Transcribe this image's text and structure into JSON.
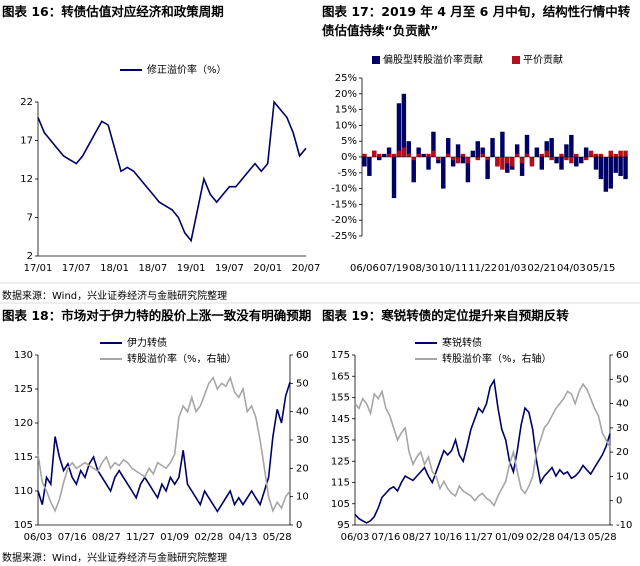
{
  "chart_data": [
    {
      "type": "line",
      "title": "图表 16：转债估值对应经济和政策周期",
      "categories": [
        "17/01",
        null,
        null,
        null,
        null,
        null,
        "17/07",
        null,
        null,
        null,
        null,
        null,
        "18/01",
        null,
        null,
        null,
        null,
        null,
        "18/07",
        null,
        null,
        null,
        null,
        null,
        "19/01",
        null,
        null,
        null,
        null,
        null,
        "19/07",
        null,
        null,
        null,
        null,
        null,
        "20/01",
        null,
        null,
        null,
        null,
        null,
        "20/07"
      ],
      "series": [
        {
          "name": "修正溢价率（%）",
          "color": "#000066",
          "values": [
            20,
            18,
            17,
            16,
            15,
            14.5,
            14,
            15,
            16.5,
            18,
            19.5,
            19,
            16,
            13,
            13.5,
            13,
            12,
            11,
            10,
            9,
            8.5,
            8,
            7,
            5,
            4,
            8,
            12,
            10,
            9,
            10,
            11,
            11,
            12,
            13,
            14,
            13,
            14,
            22,
            21,
            20,
            18,
            15,
            16
          ]
        }
      ],
      "ylim": [
        2,
        22
      ],
      "yticks": [
        2,
        7,
        12,
        17,
        22
      ]
    },
    {
      "type": "bar",
      "title": "图表 17：2019 年 4 月至 6 月中旬，结构性行情中转债估值持续“负贡献”",
      "categories": [
        "06/06",
        null,
        null,
        null,
        null,
        null,
        "07/19",
        null,
        null,
        null,
        null,
        null,
        "08/30",
        null,
        null,
        null,
        null,
        null,
        "10/11",
        null,
        null,
        null,
        null,
        null,
        "11/22",
        null,
        null,
        null,
        null,
        null,
        "01/03",
        null,
        null,
        null,
        null,
        null,
        "02/21",
        null,
        null,
        null,
        null,
        null,
        "04/03",
        null,
        null,
        null,
        null,
        null,
        "05/15",
        null,
        null,
        null,
        null,
        null
      ],
      "series": [
        {
          "name": "偏股型转股溢价率贡献",
          "color": "#000066",
          "values": [
            -3,
            -6,
            2,
            -1,
            1,
            3,
            -13,
            17,
            20,
            5,
            -8,
            3,
            1,
            -4,
            8,
            -2,
            -10,
            6,
            -3,
            4,
            -2,
            -8,
            2,
            5,
            3,
            -7,
            6,
            -3,
            8,
            -5,
            -4,
            4,
            -6,
            7,
            -2,
            3,
            -4,
            5,
            6,
            -2,
            -4,
            4,
            7,
            -3,
            -2,
            3,
            1,
            -4,
            -7,
            -11,
            -10,
            -5,
            -6,
            -7
          ]
        },
        {
          "name": "平价贡献",
          "color": "#b0101e",
          "values": [
            1,
            0,
            2,
            1,
            0,
            1,
            1,
            2,
            3,
            1,
            -1,
            1,
            0,
            1,
            2,
            -1,
            0,
            1,
            -1,
            -2,
            1,
            -2,
            0,
            -1,
            1,
            -1,
            0,
            -3,
            -4,
            -2,
            -3,
            1,
            -2,
            1,
            -3,
            0,
            1,
            2,
            -1,
            0,
            1,
            -1,
            -2,
            1,
            0,
            -1,
            2,
            1,
            1,
            0,
            2,
            1,
            2,
            2
          ]
        }
      ],
      "ylim": [
        -25,
        25
      ],
      "yticks": [
        {
          "value": -25,
          "label": "-25%"
        },
        {
          "value": -20,
          "label": "-20%"
        },
        {
          "value": -15,
          "label": "-15%"
        },
        {
          "value": -10,
          "label": "-10%"
        },
        {
          "value": -5,
          "label": "-5%"
        },
        {
          "value": 0,
          "label": "0%"
        },
        {
          "value": 5,
          "label": "5%"
        },
        {
          "value": 10,
          "label": "10%"
        },
        {
          "value": 15,
          "label": "15%"
        },
        {
          "value": 20,
          "label": "20%"
        },
        {
          "value": 25,
          "label": "25%"
        }
      ]
    },
    {
      "type": "line",
      "title": "图表 18：市场对于伊力特的股价上涨一致没有明确预期",
      "categories": [
        "06/03",
        null,
        null,
        null,
        null,
        null,
        null,
        null,
        "07/16",
        null,
        null,
        null,
        null,
        null,
        null,
        null,
        "08/27",
        null,
        null,
        null,
        null,
        null,
        null,
        null,
        "11/27",
        null,
        null,
        null,
        null,
        null,
        null,
        null,
        "01/09",
        null,
        null,
        null,
        null,
        null,
        null,
        null,
        "02/28",
        null,
        null,
        null,
        null,
        null,
        null,
        null,
        "04/13",
        null,
        null,
        null,
        null,
        null,
        null,
        null,
        "05/28",
        null,
        null,
        null
      ],
      "series": [
        {
          "name": "伊力转债",
          "color": "#000066",
          "values": [
            110,
            108,
            112,
            111,
            118,
            115,
            113,
            114,
            112,
            111,
            113,
            112,
            114,
            115,
            113,
            112,
            111,
            110,
            112,
            113,
            112,
            111,
            110,
            109,
            111,
            112,
            111,
            110,
            109,
            111,
            110,
            112,
            111,
            112,
            116,
            111,
            110,
            109,
            108,
            110,
            109,
            108,
            107,
            108,
            109,
            110,
            108,
            109,
            108,
            109,
            110,
            109,
            108,
            110,
            112,
            118,
            122,
            120,
            124,
            126
          ]
        },
        {
          "name": "转股溢价率（%，右轴）",
          "color": "#a6a6a6",
          "axis": "y2",
          "values": [
            25,
            15,
            12,
            8,
            5,
            9,
            15,
            20,
            22,
            20,
            21,
            22,
            21,
            20,
            19,
            22,
            24,
            20,
            22,
            21,
            23,
            22,
            20,
            19,
            18,
            17,
            20,
            18,
            22,
            21,
            20,
            22,
            25,
            38,
            42,
            40,
            45,
            40,
            42,
            46,
            50,
            52,
            48,
            50,
            49,
            52,
            47,
            45,
            48,
            40,
            42,
            38,
            30,
            20,
            10,
            5,
            8,
            6,
            10,
            12
          ]
        }
      ],
      "ylim": [
        105,
        130
      ],
      "yticks": [
        105,
        110,
        115,
        120,
        125,
        130
      ],
      "y2lim": [
        0,
        60
      ],
      "y2ticks": [
        0,
        10,
        20,
        30,
        40,
        50,
        60
      ]
    },
    {
      "type": "line",
      "title": "图表 19：寒锐转债的定位提升来自预期反转",
      "categories": [
        "06/03",
        null,
        null,
        null,
        null,
        null,
        null,
        null,
        "07/16",
        null,
        null,
        null,
        null,
        null,
        null,
        null,
        "08/27",
        null,
        null,
        null,
        null,
        null,
        null,
        null,
        "10/16",
        null,
        null,
        null,
        null,
        null,
        null,
        null,
        "11/27",
        null,
        null,
        null,
        null,
        null,
        null,
        null,
        "01/09",
        null,
        null,
        null,
        null,
        null,
        null,
        null,
        "02/28",
        null,
        null,
        null,
        null,
        null,
        null,
        null,
        "04/13",
        null,
        null,
        null,
        null,
        null,
        null,
        null,
        "05/28",
        null,
        null
      ],
      "series": [
        {
          "name": "寒锐转债",
          "color": "#000066",
          "values": [
            100,
            98,
            97,
            96,
            97,
            99,
            103,
            108,
            110,
            112,
            113,
            111,
            115,
            118,
            117,
            116,
            118,
            120,
            122,
            118,
            115,
            120,
            125,
            130,
            128,
            130,
            135,
            128,
            125,
            132,
            140,
            145,
            150,
            148,
            152,
            160,
            163,
            150,
            140,
            135,
            125,
            120,
            130,
            142,
            150,
            148,
            140,
            125,
            115,
            118,
            120,
            122,
            118,
            121,
            119,
            120,
            117,
            118,
            120,
            123,
            121,
            119,
            122,
            125,
            128,
            132,
            138
          ]
        },
        {
          "name": "转股溢价率（%，右轴）",
          "color": "#a6a6a6",
          "axis": "y2",
          "values": [
            40,
            38,
            42,
            40,
            36,
            44,
            42,
            45,
            38,
            35,
            30,
            25,
            28,
            30,
            20,
            15,
            18,
            20,
            15,
            18,
            12,
            10,
            5,
            8,
            5,
            3,
            2,
            6,
            4,
            3,
            2,
            0,
            2,
            3,
            1,
            0,
            -2,
            2,
            5,
            8,
            15,
            20,
            12,
            5,
            3,
            6,
            10,
            20,
            25,
            30,
            32,
            35,
            38,
            40,
            42,
            45,
            44,
            40,
            45,
            48,
            46,
            42,
            38,
            35,
            28,
            25,
            22
          ]
        }
      ],
      "ylim": [
        95,
        175
      ],
      "yticks": [
        95,
        105,
        115,
        125,
        135,
        145,
        155,
        165,
        175
      ],
      "y2lim": [
        -10,
        60
      ],
      "y2ticks": [
        -10,
        0,
        10,
        20,
        30,
        40,
        50,
        60
      ]
    }
  ],
  "notes": [
    "数据来源：Wind，兴业证券经济与金融研究院整理",
    "数据来源：Wind，兴业证券经济与金融研究院整理"
  ]
}
